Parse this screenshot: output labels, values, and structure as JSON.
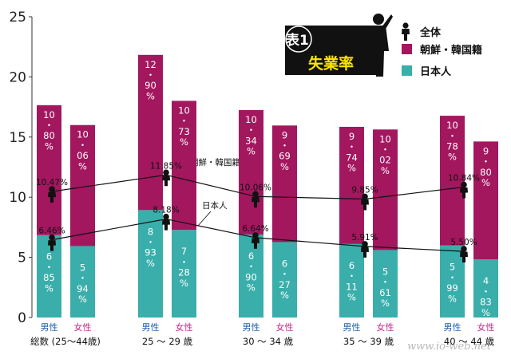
{
  "title": {
    "badge": "表1",
    "main": "失業率"
  },
  "legend": [
    {
      "label": "全体",
      "icon": "figure-icon"
    },
    {
      "label": "朝鮮・韓国籍",
      "color": "#a3175f"
    },
    {
      "label": "日本人",
      "color": "#3aaeaa"
    }
  ],
  "watermark": "www.io-web.net",
  "chart_data": {
    "type": "bar",
    "stacked": true,
    "ylim": [
      0,
      25
    ],
    "yticks": [
      "0",
      "5",
      "10",
      "15",
      "20",
      "25"
    ],
    "colors": {
      "japanese": "#3aaeaa",
      "korean": "#a3175f"
    },
    "groups": [
      {
        "label": "総数 (25〜44歳)",
        "bars": [
          {
            "gender": "男性",
            "japanese": 6.85,
            "korean": 10.8,
            "jp_label": [
              "6",
              "・",
              "85",
              "%"
            ],
            "kr_label": [
              "10",
              "・",
              "80",
              "%"
            ]
          },
          {
            "gender": "女性",
            "japanese": 5.94,
            "korean": 10.06,
            "jp_label": [
              "5",
              "・",
              "94",
              "%"
            ],
            "kr_label": [
              "10",
              "・",
              "06",
              "%"
            ]
          }
        ]
      },
      {
        "label": "25 〜 29 歳",
        "bars": [
          {
            "gender": "男性",
            "japanese": 8.93,
            "korean": 12.9,
            "jp_label": [
              "8",
              "・",
              "93",
              "%"
            ],
            "kr_label": [
              "12",
              "・",
              "90",
              "%"
            ]
          },
          {
            "gender": "女性",
            "japanese": 7.28,
            "korean": 10.73,
            "jp_label": [
              "7",
              "・",
              "28",
              "%"
            ],
            "kr_label": [
              "10",
              "・",
              "73",
              "%"
            ]
          }
        ]
      },
      {
        "label": "30 〜 34 歳",
        "bars": [
          {
            "gender": "男性",
            "japanese": 6.9,
            "korean": 10.34,
            "jp_label": [
              "6",
              "・",
              "90",
              "%"
            ],
            "kr_label": [
              "10",
              "・",
              "34",
              "%"
            ]
          },
          {
            "gender": "女性",
            "japanese": 6.27,
            "korean": 9.69,
            "jp_label": [
              "6",
              "・",
              "27",
              "%"
            ],
            "kr_label": [
              "9",
              "・",
              "69",
              "%"
            ]
          }
        ]
      },
      {
        "label": "35 〜 39 歳",
        "bars": [
          {
            "gender": "男性",
            "japanese": 6.11,
            "korean": 9.74,
            "jp_label": [
              "6",
              "・",
              "11",
              "%"
            ],
            "kr_label": [
              "9",
              "・",
              "74",
              "%"
            ]
          },
          {
            "gender": "女性",
            "japanese": 5.61,
            "korean": 10.02,
            "jp_label": [
              "5",
              "・",
              "61",
              "%"
            ],
            "kr_label": [
              "10",
              "・",
              "02",
              "%"
            ]
          }
        ]
      },
      {
        "label": "40 〜 44 歳",
        "bars": [
          {
            "gender": "男性",
            "japanese": 5.99,
            "korean": 10.78,
            "jp_label": [
              "5",
              "・",
              "99",
              "%"
            ],
            "kr_label": [
              "10",
              "・",
              "78",
              "%"
            ]
          },
          {
            "gender": "女性",
            "japanese": 4.83,
            "korean": 9.8,
            "jp_label": [
              "4",
              "・",
              "83",
              "%"
            ],
            "kr_label": [
              "9",
              "・",
              "80",
              "%"
            ]
          }
        ]
      }
    ],
    "series": [
      {
        "name": "朝鮮・韓国籍",
        "values": [
          10.47,
          11.85,
          10.06,
          9.85,
          10.84
        ],
        "labels": [
          "10.47%",
          "11.85%",
          "10.06%",
          "9.85%",
          "10.84%"
        ]
      },
      {
        "name": "日本人",
        "values": [
          6.46,
          8.18,
          6.64,
          5.91,
          5.5
        ],
        "labels": [
          "6.46%",
          "8.18%",
          "6.64%",
          "5.91%",
          "5.50%"
        ]
      }
    ]
  }
}
